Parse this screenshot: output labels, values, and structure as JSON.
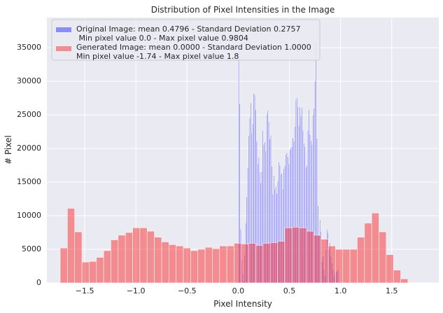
{
  "chart_data": {
    "type": "bar",
    "title": "Distribution of Pixel Intensities in the Image",
    "xlabel": "Pixel Intensity",
    "ylabel": "# Pixel",
    "xlim": [
      -1.87,
      1.96
    ],
    "ylim": [
      0,
      39500
    ],
    "xticks": [
      -1.5,
      -1.0,
      -0.5,
      0.0,
      0.5,
      1.0,
      1.5
    ],
    "xtick_labels": [
      "−1.5",
      "−1.0",
      "−0.5",
      "0.0",
      "0.5",
      "1.0",
      "1.5"
    ],
    "yticks": [
      0,
      5000,
      10000,
      15000,
      20000,
      25000,
      30000,
      35000
    ],
    "ytick_labels": [
      "0",
      "5000",
      "10000",
      "15000",
      "20000",
      "25000",
      "30000",
      "35000"
    ],
    "grid": true,
    "legend_position": "top-left",
    "background": "#eaeaf2",
    "series": [
      {
        "name": "Original Image: mean 0.4796 - Standard Deviation 0.2757\n Min pixel value 0.0 - Max pixel value 0.9804",
        "color": "#0000ff",
        "opacity": 0.4,
        "bin_start": 0.0,
        "bin_width": 0.009804,
        "values": [
          35000,
          26700,
          8000,
          3500,
          1500,
          300,
          4100,
          8900,
          12800,
          17200,
          21900,
          24600,
          26800,
          22300,
          23700,
          28200,
          28000,
          25800,
          21100,
          17700,
          18700,
          16500,
          14900,
          16600,
          22700,
          20600,
          21000,
          19600,
          25100,
          25700,
          24000,
          21400,
          22000,
          17400,
          13200,
          16000,
          14000,
          14400,
          13300,
          15200,
          18000,
          17500,
          16200,
          16400,
          14000,
          17000,
          17500,
          19100,
          19400,
          18800,
          17700,
          19800,
          20100,
          20300,
          21600,
          21100,
          23300,
          27300,
          27600,
          26200,
          23400,
          26200,
          24800,
          26100,
          22700,
          20800,
          20300,
          17200,
          17500,
          22700,
          25800,
          22100,
          21200,
          20600,
          25000,
          26000,
          30000,
          35800,
          21500,
          11500,
          7000,
          9400,
          7600,
          3200,
          4000,
          2000,
          1000,
          5000,
          8000,
          7500,
          5000,
          6000,
          4000,
          3000,
          2000,
          1000,
          1500,
          1700,
          1800,
          2000,
          0
        ]
      },
      {
        "name": "Generated Image: mean 0.0000 - Standard Deviation 1.0000\nMin pixel value -1.74 - Max pixel value 1.8",
        "color": "#ff0000",
        "opacity": 0.4,
        "bin_start": -1.74,
        "bin_width": 0.0708,
        "values": [
          5200,
          11100,
          7600,
          3100,
          3200,
          3800,
          4800,
          6400,
          7100,
          7500,
          8200,
          8200,
          7700,
          6800,
          6100,
          5700,
          5500,
          5200,
          4800,
          5000,
          5300,
          5100,
          5500,
          5500,
          5900,
          5800,
          5900,
          5600,
          5900,
          6000,
          6200,
          8200,
          8300,
          8200,
          7700,
          7100,
          6500,
          5500,
          5000,
          5000,
          5000,
          6800,
          8900,
          10400,
          7600,
          4200,
          1900,
          600
        ]
      }
    ]
  }
}
